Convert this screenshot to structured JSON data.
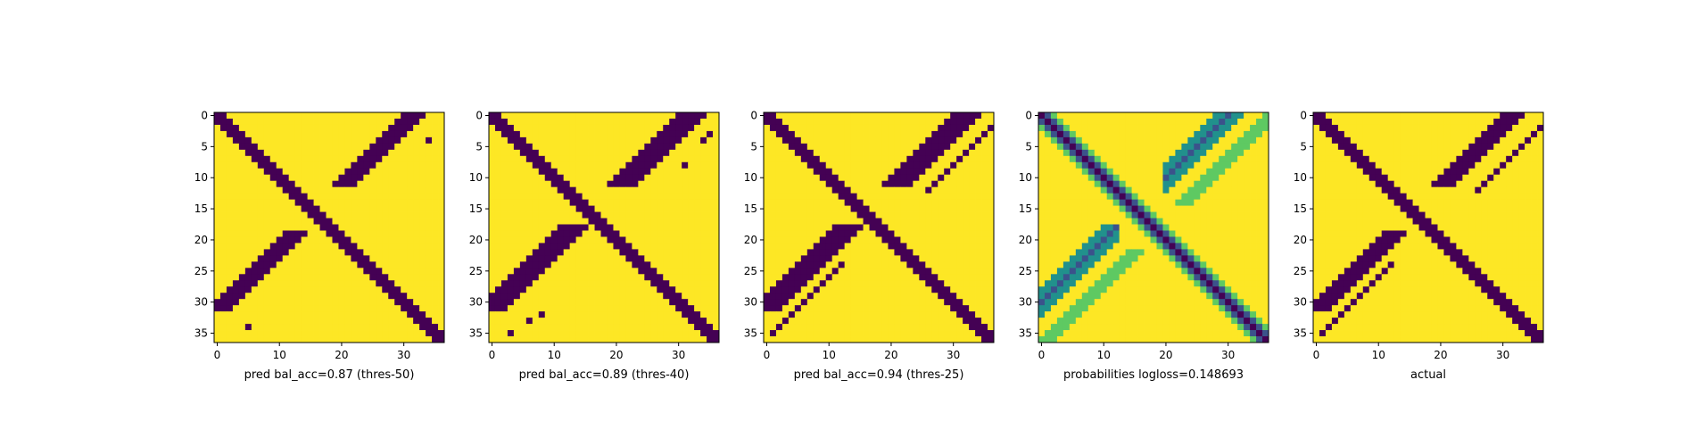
{
  "colors": {
    "background": "#ffffff",
    "low": "#440154",
    "mid_blue": "#3b528b",
    "mid_teal": "#21918c",
    "mid_green": "#5ec962",
    "high": "#fde725"
  },
  "chart_data": [
    {
      "type": "heatmap",
      "title": "",
      "xlabel": "pred bal_acc=0.87 (thres-50)",
      "grid_size": 37,
      "xlim": [
        0,
        36
      ],
      "ylim": [
        36,
        0
      ],
      "x_ticks": [
        "0",
        "10",
        "20",
        "30"
      ],
      "y_ticks": [
        "0",
        "5",
        "10",
        "15",
        "20",
        "25",
        "30",
        "35"
      ],
      "value_range": [
        0,
        1
      ],
      "pattern": "binary mask (1 = yellow, 0 = purple): main diagonal band i≈j plus anti-diagonal blobs near rows 0-11 cols 20-31 and rows 19-31 cols 0-11",
      "isolated_low_cells": [
        [
          4,
          34
        ],
        [
          34,
          5
        ]
      ]
    },
    {
      "type": "heatmap",
      "title": "",
      "xlabel": "pred bal_acc=0.89 (thres-40)",
      "grid_size": 37,
      "xlim": [
        0,
        36
      ],
      "ylim": [
        36,
        0
      ],
      "x_ticks": [
        "0",
        "10",
        "20",
        "30"
      ],
      "y_ticks": [
        "0",
        "5",
        "10",
        "15",
        "20",
        "25",
        "30",
        "35"
      ],
      "value_range": [
        0,
        1
      ],
      "pattern": "binary mask: diagonal band plus wider anti-diagonal blobs with a few isolated cells",
      "isolated_low_cells": [
        [
          3,
          35
        ],
        [
          4,
          34
        ],
        [
          8,
          31
        ],
        [
          32,
          8
        ],
        [
          33,
          6
        ],
        [
          35,
          3
        ]
      ]
    },
    {
      "type": "heatmap",
      "title": "",
      "xlabel": "pred bal_acc=0.94 (thres-25)",
      "grid_size": 37,
      "xlim": [
        0,
        36
      ],
      "ylim": [
        36,
        0
      ],
      "x_ticks": [
        "0",
        "10",
        "20",
        "30"
      ],
      "y_ticks": [
        "0",
        "5",
        "10",
        "15",
        "20",
        "25",
        "30",
        "35"
      ],
      "value_range": [
        0,
        1
      ],
      "pattern": "binary mask: diagonal band plus anti-diagonal blobs and secondary dotted off-diagonal lines"
    },
    {
      "type": "heatmap",
      "title": "",
      "xlabel": "probabilities logloss=0.148693",
      "grid_size": 37,
      "xlim": [
        0,
        36
      ],
      "ylim": [
        36,
        0
      ],
      "x_ticks": [
        "0",
        "10",
        "20",
        "30"
      ],
      "y_ticks": [
        "0",
        "5",
        "10",
        "15",
        "20",
        "25",
        "30",
        "35"
      ],
      "value_range": [
        0,
        1
      ],
      "pattern": "continuous probabilities: dark diagonal band, dark anti-diagonal blobs with teal/green fringes, faint green off-diagonal lines"
    },
    {
      "type": "heatmap",
      "title": "",
      "xlabel": "actual",
      "grid_size": 37,
      "xlim": [
        0,
        36
      ],
      "ylim": [
        36,
        0
      ],
      "x_ticks": [
        "0",
        "10",
        "20",
        "30"
      ],
      "y_ticks": [
        "0",
        "5",
        "10",
        "15",
        "20",
        "25",
        "30",
        "35"
      ],
      "value_range": [
        0,
        1
      ],
      "pattern": "binary mask: diagonal band, anti-diagonal blobs, and thin dotted off-diagonal lines"
    }
  ]
}
